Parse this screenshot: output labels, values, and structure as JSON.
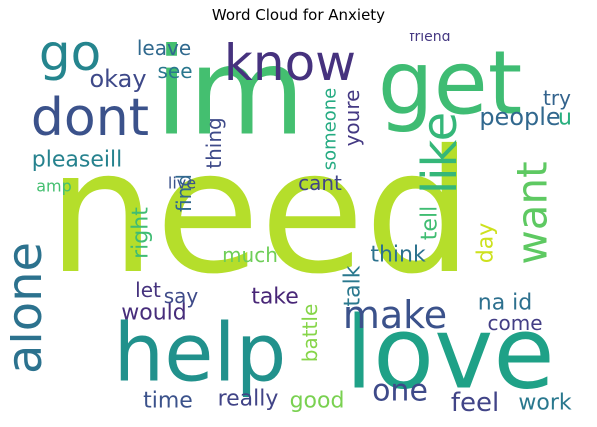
{
  "chart_data": {
    "type": "wordcloud",
    "title": "Word Cloud for Anxiety",
    "words": [
      {
        "text": "need",
        "color": "#b5de2b"
      },
      {
        "text": "im",
        "color": "#44bf70"
      },
      {
        "text": "get",
        "color": "#3fbc73"
      },
      {
        "text": "help",
        "color": "#21918c"
      },
      {
        "text": "love",
        "color": "#1fa187"
      },
      {
        "text": "know",
        "color": "#46327e"
      },
      {
        "text": "dont",
        "color": "#3b528b"
      },
      {
        "text": "alone",
        "color": "#2c728e"
      },
      {
        "text": "go",
        "color": "#25858e"
      },
      {
        "text": "like",
        "color": "#35b779"
      },
      {
        "text": "want",
        "color": "#5ec962"
      },
      {
        "text": "make",
        "color": "#3b528b"
      },
      {
        "text": "people",
        "color": "#31688e"
      },
      {
        "text": "one",
        "color": "#3e4a89"
      },
      {
        "text": "feel",
        "color": "#414487"
      },
      {
        "text": "work",
        "color": "#2a788e"
      },
      {
        "text": "pleaseill",
        "color": "#26828e"
      },
      {
        "text": "okay",
        "color": "#3e4989"
      },
      {
        "text": "leave",
        "color": "#30698e"
      },
      {
        "text": "see",
        "color": "#2a778e"
      },
      {
        "text": "think",
        "color": "#2c728e"
      },
      {
        "text": "take",
        "color": "#482677"
      },
      {
        "text": "time",
        "color": "#3b528b"
      },
      {
        "text": "really",
        "color": "#414487"
      },
      {
        "text": "good",
        "color": "#7ad151"
      },
      {
        "text": "would",
        "color": "#472d7b"
      },
      {
        "text": "say",
        "color": "#3e4a89"
      },
      {
        "text": "let",
        "color": "#46337e"
      },
      {
        "text": "much",
        "color": "#6ece58"
      },
      {
        "text": "cant",
        "color": "#404588"
      },
      {
        "text": "right",
        "color": "#3fbc73"
      },
      {
        "text": "find",
        "color": "#31688e"
      },
      {
        "text": "talk",
        "color": "#2a788e"
      },
      {
        "text": "battle",
        "color": "#86d549"
      },
      {
        "text": "na id",
        "color": "#2d708e"
      },
      {
        "text": "come",
        "color": "#433e85"
      },
      {
        "text": "youre",
        "color": "#443983"
      },
      {
        "text": "tell",
        "color": "#40bd72"
      },
      {
        "text": "someone",
        "color": "#25ab82"
      },
      {
        "text": "thing",
        "color": "#3e4a89"
      },
      {
        "text": "amp",
        "color": "#44bf70"
      },
      {
        "text": "live",
        "color": "#3b528b"
      },
      {
        "text": "try",
        "color": "#33638d"
      },
      {
        "text": "u",
        "color": "#29af7f"
      },
      {
        "text": "day",
        "color": "#cde11d"
      },
      {
        "text": "friend",
        "color": "#453882"
      }
    ]
  }
}
